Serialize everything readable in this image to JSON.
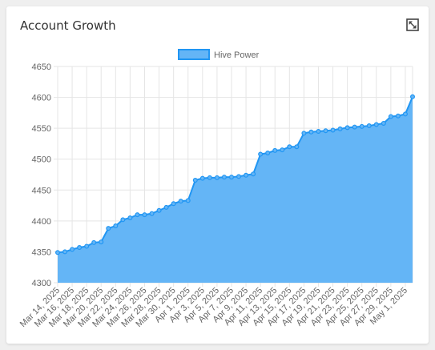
{
  "widget": {
    "title": "Account Growth",
    "expand_icon": "expand-icon"
  },
  "chart_data": {
    "type": "area",
    "legend": {
      "position": "top",
      "entries": [
        "Hive Power"
      ]
    },
    "colors": {
      "fill": "#64b5f6",
      "line": "#2196f3",
      "grid": "#e5e5e5"
    },
    "grid": true,
    "ylim": [
      4300,
      4650
    ],
    "y_ticks": [
      "4650",
      "4600",
      "4550",
      "4500",
      "4450",
      "4400",
      "4350",
      "4300"
    ],
    "x_tick_labels": [
      "Mar 14, 2025",
      "Mar 16, 2025",
      "Mar 18, 2025",
      "Mar 20, 2025",
      "Mar 22, 2025",
      "Mar 24, 2025",
      "Mar 26, 2025",
      "Mar 28, 2025",
      "Mar 30, 2025",
      "Apr 1, 2025",
      "Apr 3, 2025",
      "Apr 5, 2025",
      "Apr 7, 2025",
      "Apr 9, 2025",
      "Apr 11, 2025",
      "Apr 13, 2025",
      "Apr 15, 2025",
      "Apr 17, 2025",
      "Apr 19, 2025",
      "Apr 21, 2025",
      "Apr 23, 2025",
      "Apr 25, 2025",
      "Apr 27, 2025",
      "Apr 29, 2025",
      "May 1, 2025"
    ],
    "series": [
      {
        "name": "Hive Power",
        "x": [
          "Mar 14, 2025",
          "Mar 15, 2025",
          "Mar 16, 2025",
          "Mar 17, 2025",
          "Mar 18, 2025",
          "Mar 19, 2025",
          "Mar 20, 2025",
          "Mar 21, 2025",
          "Mar 22, 2025",
          "Mar 23, 2025",
          "Mar 24, 2025",
          "Mar 25, 2025",
          "Mar 26, 2025",
          "Mar 27, 2025",
          "Mar 28, 2025",
          "Mar 29, 2025",
          "Mar 30, 2025",
          "Mar 31, 2025",
          "Apr 1, 2025",
          "Apr 2, 2025",
          "Apr 3, 2025",
          "Apr 4, 2025",
          "Apr 5, 2025",
          "Apr 6, 2025",
          "Apr 7, 2025",
          "Apr 8, 2025",
          "Apr 9, 2025",
          "Apr 10, 2025",
          "Apr 11, 2025",
          "Apr 12, 2025",
          "Apr 13, 2025",
          "Apr 14, 2025",
          "Apr 15, 2025",
          "Apr 16, 2025",
          "Apr 17, 2025",
          "Apr 18, 2025",
          "Apr 19, 2025",
          "Apr 20, 2025",
          "Apr 21, 2025",
          "Apr 22, 2025",
          "Apr 23, 2025",
          "Apr 24, 2025",
          "Apr 25, 2025",
          "Apr 26, 2025",
          "Apr 27, 2025",
          "Apr 28, 2025",
          "Apr 29, 2025",
          "Apr 30, 2025",
          "May 1, 2025",
          "May 2, 2025"
        ],
        "values": [
          4349,
          4350,
          4354,
          4357,
          4359,
          4365,
          4366,
          4388,
          4392,
          4402,
          4405,
          4410,
          4410,
          4412,
          4417,
          4422,
          4428,
          4432,
          4433,
          4466,
          4469,
          4470,
          4470,
          4471,
          4471,
          4472,
          4474,
          4476,
          4508,
          4510,
          4514,
          4515,
          4520,
          4520,
          4542,
          4544,
          4545,
          4546,
          4547,
          4549,
          4551,
          4552,
          4553,
          4554,
          4556,
          4558,
          4569,
          4570,
          4573,
          4601
        ]
      }
    ]
  }
}
